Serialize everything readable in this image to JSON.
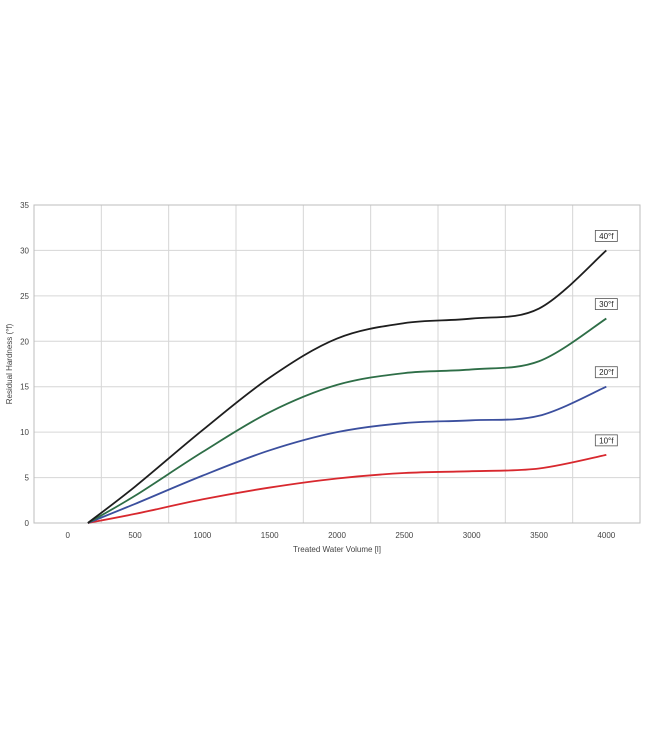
{
  "chart_data": {
    "type": "line",
    "title": "",
    "xlabel": "Treated Water Volume [l]",
    "ylabel": "Residual Hardness (°f)",
    "xlim": [
      -250,
      4250
    ],
    "ylim": [
      0,
      35
    ],
    "x_ticks": [
      "0",
      "500",
      "1000",
      "1500",
      "2000",
      "2500",
      "3000",
      "3500",
      "4000"
    ],
    "y_ticks": [
      "0",
      "5",
      "10",
      "15",
      "20",
      "25",
      "30",
      "35"
    ],
    "grid": true,
    "legend": "labels at line ends",
    "series": [
      {
        "name": "10°f",
        "color": "#d8282e",
        "x": [
          150,
          500,
          1000,
          1500,
          2000,
          2500,
          3000,
          3500,
          4000
        ],
        "y": [
          0,
          1.0,
          2.6,
          3.9,
          4.9,
          5.5,
          5.7,
          6.0,
          7.5
        ]
      },
      {
        "name": "20°f",
        "color": "#3b4f9e",
        "x": [
          150,
          500,
          1000,
          1500,
          2000,
          2500,
          3000,
          3500,
          4000
        ],
        "y": [
          0,
          2.1,
          5.2,
          8.0,
          10.0,
          11.0,
          11.3,
          11.8,
          15.0
        ]
      },
      {
        "name": "30°f",
        "color": "#2e6e47",
        "x": [
          150,
          500,
          1000,
          1500,
          2000,
          2500,
          3000,
          3500,
          4000
        ],
        "y": [
          0,
          3.0,
          7.8,
          12.2,
          15.2,
          16.5,
          16.9,
          17.8,
          22.5
        ]
      },
      {
        "name": "40°f",
        "color": "#1e1e1e",
        "x": [
          150,
          500,
          1000,
          1500,
          2000,
          2500,
          3000,
          3500,
          4000
        ],
        "y": [
          0,
          4.0,
          10.2,
          16.0,
          20.3,
          22.0,
          22.5,
          23.6,
          30.0
        ]
      }
    ]
  }
}
